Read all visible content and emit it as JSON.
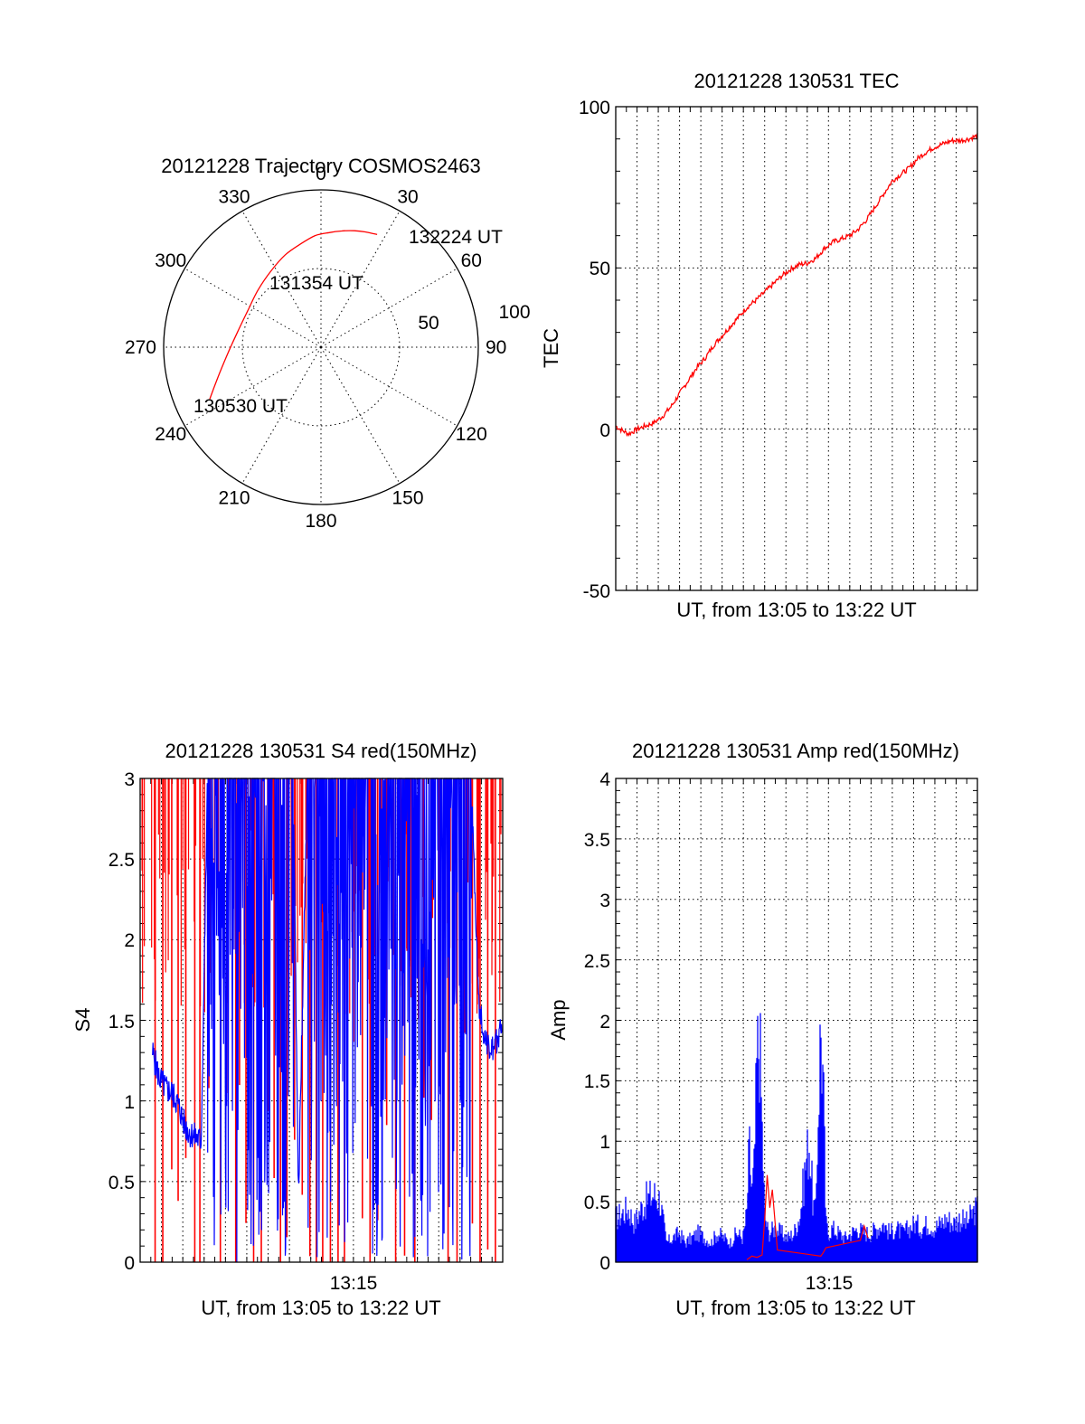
{
  "chart_data": [
    {
      "type": "polar",
      "title": "20121228 Trajectory COSMOS2463",
      "azimuth_labels": [
        "0",
        "30",
        "60",
        "90",
        "120",
        "150",
        "180",
        "210",
        "240",
        "270",
        "300",
        "330"
      ],
      "radial_labels": [
        "50",
        "100"
      ],
      "grid": true,
      "series": [
        {
          "color": "#ff0000",
          "points": [
            {
              "az": 245,
              "r": 78
            },
            {
              "az": 254,
              "r": 68
            },
            {
              "az": 265,
              "r": 60
            },
            {
              "az": 280,
              "r": 54
            },
            {
              "az": 296,
              "r": 52
            },
            {
              "az": 312,
              "r": 54
            },
            {
              "az": 327,
              "r": 58
            },
            {
              "az": 339,
              "r": 63
            },
            {
              "az": 349,
              "r": 67
            },
            {
              "az": 357,
              "r": 71
            },
            {
              "az": 4,
              "r": 73
            },
            {
              "az": 10,
              "r": 75
            },
            {
              "az": 16,
              "r": 77
            },
            {
              "az": 21,
              "r": 78.5
            },
            {
              "az": 26.5,
              "r": 80
            }
          ]
        }
      ],
      "annotations": [
        {
          "text": "132224 UT",
          "az": 26.5,
          "r": 80
        },
        {
          "text": "131354 UT",
          "az": 296,
          "r": 52
        },
        {
          "text": "130530 UT",
          "az": 245,
          "r": 78
        }
      ]
    },
    {
      "type": "line",
      "title": "20121228 130531 TEC",
      "xlabel": "UT, from 13:05 to 13:22 UT",
      "ylabel": "TEC",
      "xlim": [
        13.0833,
        13.3667
      ],
      "ylim": [
        -50,
        100
      ],
      "y_ticks": [
        "100",
        "50",
        "0",
        "-50"
      ],
      "x_ticks": [],
      "grid": true,
      "series": [
        {
          "color": "#ff0000",
          "x": [
            13.0833,
            13.0867,
            13.0933,
            13.1,
            13.1067,
            13.1133,
            13.12,
            13.1267,
            13.1333,
            13.14,
            13.1467,
            13.1533,
            13.16,
            13.1667,
            13.1733,
            13.18,
            13.1867,
            13.1933,
            13.2,
            13.2067,
            13.2133,
            13.22,
            13.2267,
            13.2333,
            13.24,
            13.2467,
            13.2533,
            13.26,
            13.2667,
            13.2733,
            13.28,
            13.2867,
            13.2933,
            13.3,
            13.3067,
            13.3133,
            13.32,
            13.3267,
            13.3333,
            13.34,
            13.3467,
            13.3533,
            13.36,
            13.3667
          ],
          "y": [
            1,
            0,
            -1.5,
            0,
            1,
            2,
            4,
            7,
            11,
            15,
            19,
            22,
            26,
            29,
            32,
            35,
            38,
            40,
            42.5,
            45,
            47.5,
            49.5,
            51,
            51.5,
            53,
            56,
            58,
            59,
            60,
            62,
            65,
            69,
            73,
            77,
            79,
            81,
            84,
            86,
            87.5,
            88.5,
            89.5,
            89.5,
            90,
            91
          ]
        }
      ]
    },
    {
      "type": "line",
      "title": "20121228 130531 S4 red(150MHz)",
      "xlabel": "UT, from 13:05 to 13:22 UT",
      "ylabel": "S4",
      "xlim": [
        13.0833,
        13.3667
      ],
      "ylim": [
        0,
        3
      ],
      "y_ticks": [
        "3",
        "2.5",
        "2",
        "1.5",
        "1",
        "0.5",
        "0"
      ],
      "x_tick_values": [
        13.25
      ],
      "x_ticks": [
        "13:15"
      ],
      "grid": true,
      "series": [
        {
          "color": "#ff0000",
          "x": [
            13.095,
            13.101,
            13.108,
            13.113,
            13.119,
            13.126,
            13.13,
            13.137,
            13.146,
            13.152,
            13.158,
            13.161,
            13.166,
            13.172,
            13.178,
            13.183,
            13.188,
            13.193,
            13.198,
            13.204,
            13.21,
            13.216,
            13.221,
            13.226,
            13.232,
            13.238,
            13.243,
            13.25,
            13.257,
            13.263,
            13.269,
            13.276,
            13.283,
            13.29,
            13.298,
            13.305,
            13.311,
            13.317,
            13.324,
            13.331,
            13.337,
            13.343,
            13.349,
            13.355,
            13.361
          ],
          "y": [
            3,
            3,
            3,
            3,
            3,
            3,
            3,
            3,
            3,
            3,
            3,
            3,
            3,
            3,
            3,
            3,
            3,
            3,
            3,
            3,
            3,
            3,
            3,
            3,
            3,
            3,
            3,
            3,
            3,
            3,
            3,
            3,
            3,
            3,
            3,
            3,
            3,
            3,
            3,
            3,
            3,
            3,
            3,
            3,
            3
          ]
        },
        {
          "color": "#0000ff",
          "x": [
            13.093,
            13.098,
            13.103,
            13.108,
            13.113,
            13.118,
            13.122,
            13.126,
            13.131,
            13.136,
            13.142,
            13.148,
            13.154,
            13.16,
            13.167,
            13.174,
            13.181,
            13.189,
            13.196,
            13.203,
            13.207,
            13.214,
            13.222,
            13.23,
            13.238,
            13.246,
            13.254,
            13.262,
            13.27,
            13.278,
            13.286,
            13.294,
            13.302,
            13.31,
            13.318,
            13.326,
            13.334,
            13.342,
            13.348,
            13.354,
            13.36,
            13.366
          ],
          "y": [
            1.3,
            1.15,
            1.08,
            1.05,
            0.98,
            0.85,
            0.8,
            0.78,
            0.75,
            3,
            3,
            3,
            3,
            3,
            3,
            3,
            3,
            3,
            3,
            3,
            0.4,
            3,
            3,
            3,
            3,
            3,
            3,
            3,
            3,
            3,
            3,
            3,
            3,
            3,
            3,
            3,
            3,
            3,
            1.6,
            1.35,
            1.3,
            1.5
          ]
        }
      ]
    },
    {
      "type": "line",
      "title": "20121228 130531 Amp red(150MHz)",
      "xlabel": "UT, from 13:05 to 13:22 UT",
      "ylabel": "Amp",
      "xlim": [
        13.0833,
        13.3667
      ],
      "ylim": [
        0,
        4
      ],
      "y_ticks": [
        "4",
        "3.5",
        "3",
        "2.5",
        "2",
        "1.5",
        "1",
        "0.5",
        "0"
      ],
      "x_tick_values": [
        13.25
      ],
      "x_ticks": [
        "13:15"
      ],
      "grid": true,
      "series": [
        {
          "color": "#0000ff",
          "x": [
            13.0833,
            13.088,
            13.093,
            13.098,
            13.103,
            13.108,
            13.113,
            13.118,
            13.123,
            13.128,
            13.133,
            13.138,
            13.143,
            13.148,
            13.153,
            13.158,
            13.163,
            13.168,
            13.173,
            13.178,
            13.183,
            13.186,
            13.188,
            13.19,
            13.192,
            13.194,
            13.196,
            13.198,
            13.2,
            13.203,
            13.208,
            13.213,
            13.218,
            13.223,
            13.228,
            13.232,
            13.235,
            13.238,
            13.24,
            13.242,
            13.244,
            13.246,
            13.248,
            13.25,
            13.253,
            13.258,
            13.263,
            13.268,
            13.273,
            13.278,
            13.283,
            13.288,
            13.293,
            13.298,
            13.303,
            13.308,
            13.313,
            13.318,
            13.323,
            13.328,
            13.333,
            13.338,
            13.343,
            13.348,
            13.353,
            13.358,
            13.363,
            13.3667
          ],
          "y": [
            0.45,
            0.5,
            0.55,
            0.4,
            0.55,
            0.65,
            0.7,
            0.65,
            0.2,
            0.25,
            0.3,
            0.2,
            0.25,
            0.3,
            0.25,
            0.2,
            0.3,
            0.25,
            0.2,
            0.3,
            0.25,
            0.5,
            1.2,
            0.7,
            1.0,
            2.1,
            2.35,
            1.4,
            0.5,
            0.3,
            0.35,
            0.3,
            0.25,
            0.3,
            0.5,
            1.0,
            1.25,
            0.6,
            0.5,
            1.6,
            2.45,
            1.8,
            0.4,
            0.3,
            0.35,
            0.3,
            0.25,
            0.3,
            0.35,
            0.3,
            0.3,
            0.35,
            0.4,
            0.3,
            0.35,
            0.3,
            0.35,
            0.4,
            0.35,
            0.4,
            0.35,
            0.4,
            0.45,
            0.4,
            0.45,
            0.4,
            0.5,
            0.55
          ]
        },
        {
          "color": "#ff0000",
          "x": [
            13.186,
            13.19,
            13.194,
            13.198,
            13.2,
            13.202,
            13.204,
            13.206,
            13.21,
            13.244,
            13.246,
            13.248,
            13.275,
            13.278,
            13.281
          ],
          "y": [
            0.02,
            0.05,
            0.04,
            0.06,
            0.35,
            0.72,
            0.45,
            0.6,
            0.1,
            0.05,
            0.08,
            0.12,
            0.18,
            0.3,
            0.2
          ]
        }
      ]
    }
  ]
}
